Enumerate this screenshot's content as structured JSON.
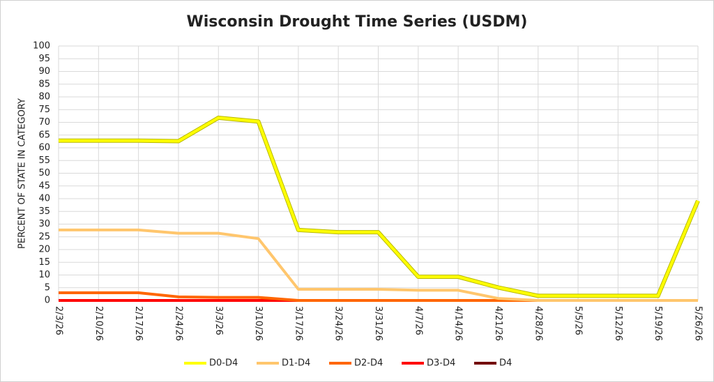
{
  "chart_data": {
    "type": "line",
    "title": "Wisconsin Drought Time Series (USDM)",
    "y_label": "PERCENT OF STATE IN CATEGORY",
    "categories": [
      "2/3/26",
      "2/10/26",
      "2/17/26",
      "2/24/26",
      "3/3/26",
      "3/10/26",
      "3/17/26",
      "3/24/26",
      "3/31/26",
      "4/7/26",
      "4/14/26",
      "4/21/26",
      "4/28/26",
      "5/5/26",
      "5/12/26",
      "5/19/26",
      "5/26/26"
    ],
    "series": [
      {
        "name": "D0-D4",
        "color": "#ffff00",
        "values": [
          62.8,
          62.8,
          62.8,
          62.6,
          71.8,
          70.3,
          27.7,
          26.8,
          26.8,
          9.3,
          9.3,
          5.1,
          1.8,
          1.8,
          1.8,
          1.8,
          39.2
        ]
      },
      {
        "name": "D1-D4",
        "color": "#ffc66d",
        "values": [
          27.7,
          27.7,
          27.7,
          26.4,
          26.4,
          24.3,
          4.4,
          4.4,
          4.4,
          4.0,
          4.0,
          0.8,
          0,
          0,
          0,
          0,
          0
        ]
      },
      {
        "name": "D2-D4",
        "color": "#ff6600",
        "values": [
          3.0,
          3.0,
          3.0,
          1.4,
          1.2,
          1.2,
          0,
          0,
          0,
          0,
          0,
          0,
          0,
          0,
          0,
          0,
          0
        ]
      },
      {
        "name": "D3-D4",
        "color": "#ff0000",
        "values": [
          0,
          0,
          0,
          0,
          0,
          0,
          0,
          0,
          0,
          0,
          0,
          0,
          0,
          0,
          0,
          0,
          0
        ]
      },
      {
        "name": "D4",
        "color": "#730000",
        "values": [
          0,
          0,
          0,
          0,
          0,
          0,
          0,
          0,
          0,
          0,
          0,
          0,
          0,
          0,
          0,
          0,
          0
        ]
      }
    ],
    "ylim": [
      0,
      100
    ],
    "yticks": [
      0,
      5,
      10,
      15,
      20,
      25,
      30,
      35,
      40,
      45,
      50,
      55,
      60,
      65,
      70,
      75,
      80,
      85,
      90,
      95,
      100
    ],
    "grid": true,
    "legend": "bottom"
  }
}
